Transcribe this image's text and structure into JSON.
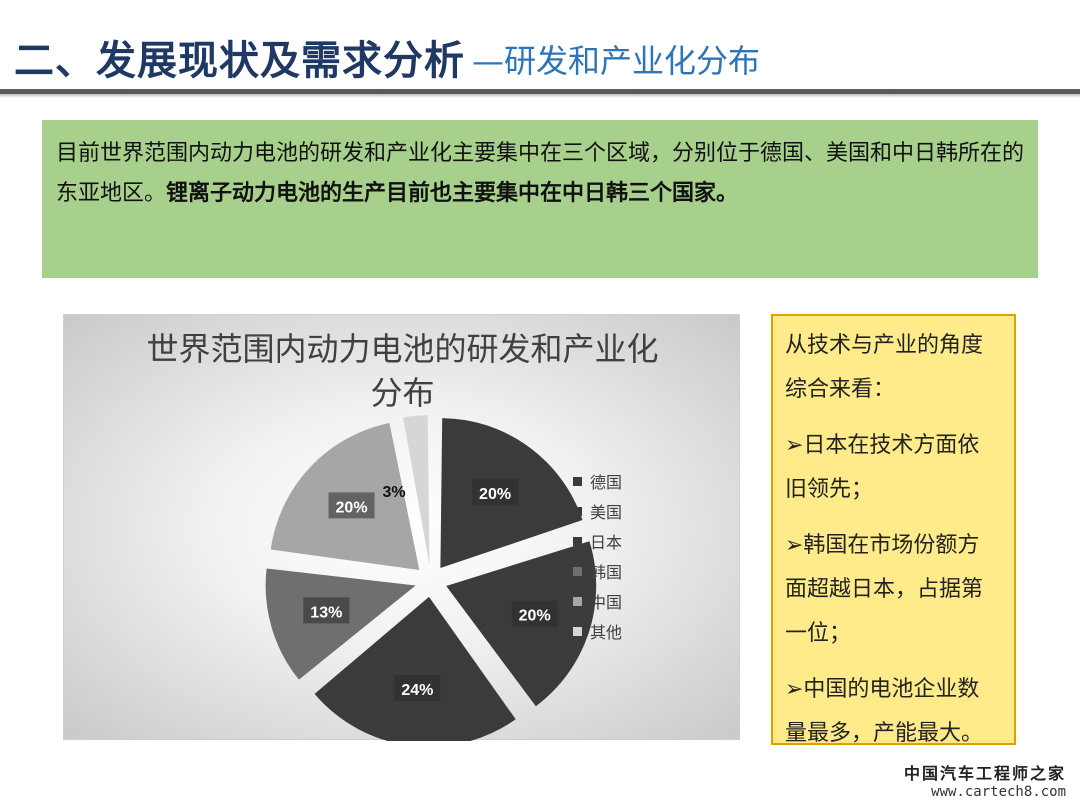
{
  "header": {
    "title_main": "二、发展现状及需求分析",
    "title_sub": "—研发和产业化分布"
  },
  "summary": {
    "text_plain": "目前世界范围内动力电池的研发和产业化主要集中在三个区域，分别位于德国、美国和中日韩所在的东亚地区。",
    "text_bold": "锂离子动力电池的生产目前也主要集中在中日韩三个国家。"
  },
  "chart_data": {
    "type": "pie",
    "title": "世界范围内动力电池的研发和产业化分布",
    "title_lines": [
      "世界范围内动力电池的研发和产业化",
      "分布"
    ],
    "categories": [
      "德国",
      "美国",
      "日本",
      "韩国",
      "中国",
      "其他"
    ],
    "values": [
      20,
      20,
      24,
      13,
      20,
      3
    ],
    "labels": [
      "20%",
      "20%",
      "24%",
      "13%",
      "20%",
      "3%"
    ],
    "colors": [
      "#3b3b3b",
      "#3b3b3b",
      "#3b3b3b",
      "#6f6f6f",
      "#a6a6a6",
      "#d6d6d6"
    ],
    "exploded": true,
    "legend_position": "right"
  },
  "side": {
    "intro": [
      "从技术与产业的角度",
      "综合来看："
    ],
    "points": [
      [
        "➢日本在技术方面依",
        "旧领先；"
      ],
      [
        "➢韩国在市场份额方",
        "面超越日本，占据第",
        "一位；"
      ],
      [
        "➢中国的电池企业数",
        "量最多，产能最大。"
      ]
    ]
  },
  "watermark": {
    "name": "中国汽车工程师之家",
    "url": "www.cartech8.com"
  }
}
